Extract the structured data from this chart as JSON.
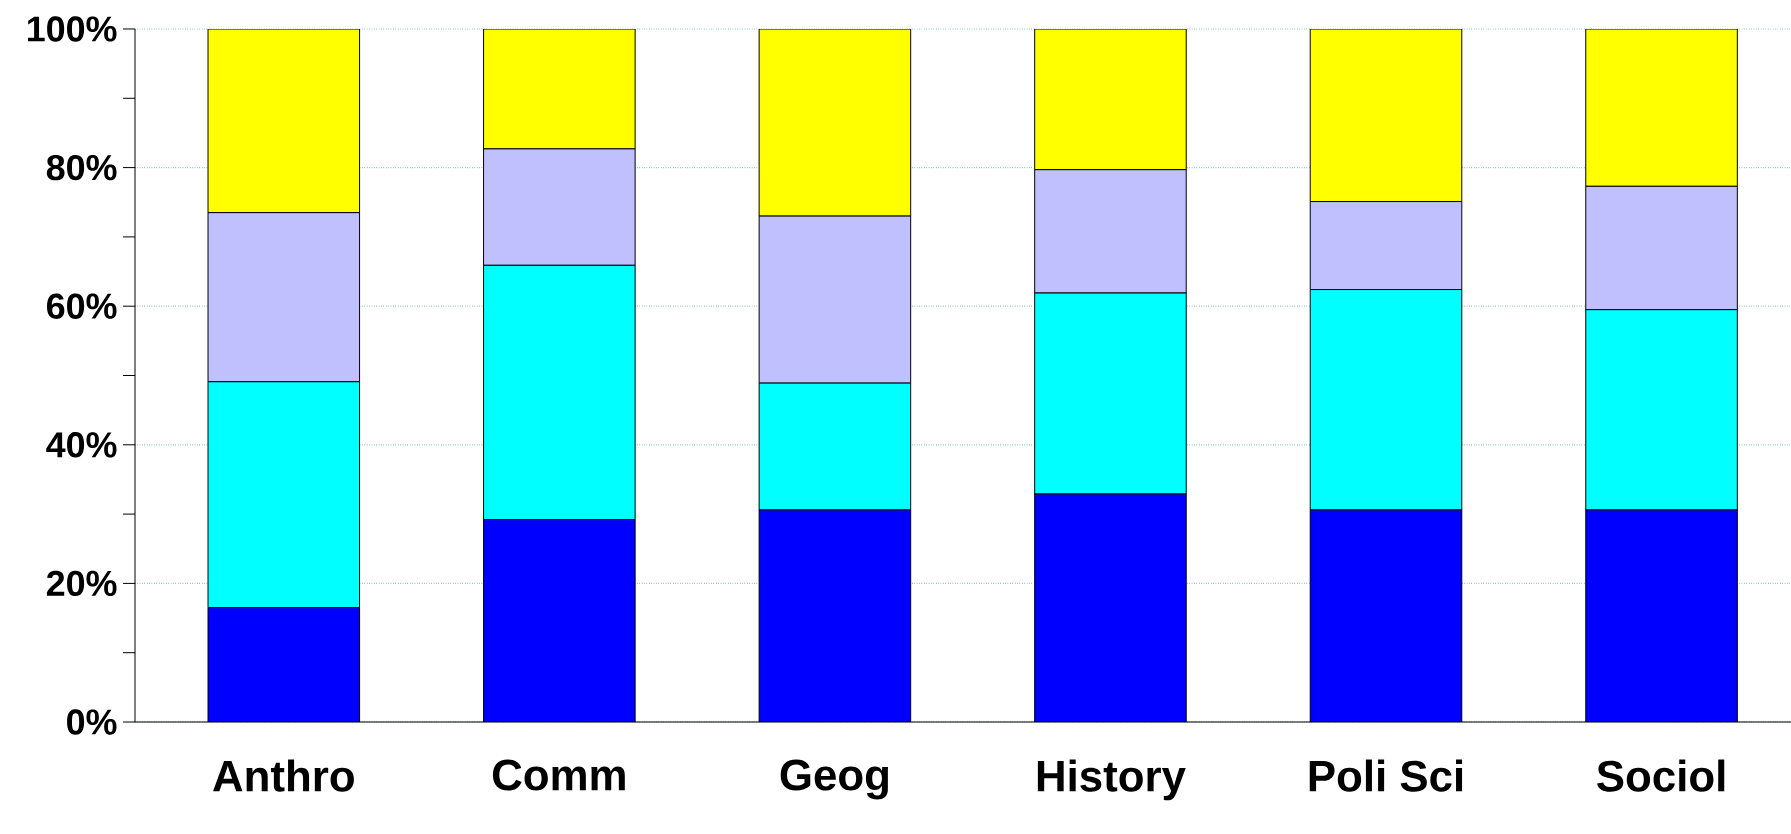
{
  "chart_data": {
    "type": "bar",
    "stacked": true,
    "categories": [
      "Anthro",
      "Comm",
      "Geog",
      "History",
      "Poli Sci",
      "Sociol"
    ],
    "series": [
      {
        "color": "#0000ff",
        "values": [
          16.5,
          29.2,
          30.6,
          32.9,
          30.6,
          30.6
        ]
      },
      {
        "color": "#00ffff",
        "values": [
          32.6,
          36.7,
          18.3,
          29.0,
          31.8,
          28.9
        ]
      },
      {
        "color": "#c0c0ff",
        "values": [
          24.4,
          16.8,
          24.1,
          17.8,
          12.7,
          17.8
        ]
      },
      {
        "color": "#ffff00",
        "values": [
          26.5,
          17.3,
          27.0,
          20.3,
          24.9,
          22.7
        ]
      }
    ],
    "ylim": [
      0,
      100
    ],
    "yticks": [
      {
        "value": 0,
        "label": "0%"
      },
      {
        "value": 10,
        "label": null
      },
      {
        "value": 20,
        "label": "20%"
      },
      {
        "value": 30,
        "label": null
      },
      {
        "value": 40,
        "label": "40%"
      },
      {
        "value": 50,
        "label": null
      },
      {
        "value": 60,
        "label": "60%"
      },
      {
        "value": 70,
        "label": null
      },
      {
        "value": 80,
        "label": "80%"
      },
      {
        "value": 90,
        "label": null
      },
      {
        "value": 100,
        "label": "100%"
      }
    ],
    "grid": "y"
  }
}
